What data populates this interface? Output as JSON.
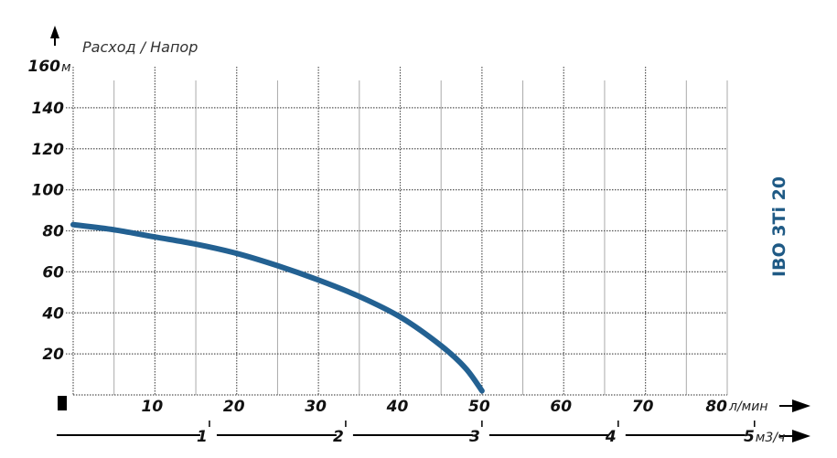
{
  "chart_data": {
    "type": "line",
    "title": "IBO 3Ti 20",
    "ylabel": "Расход / Напор",
    "y_unit": "м",
    "x_unit": "л/мин",
    "x2_unit": "м3/ч",
    "xlim": [
      0,
      80
    ],
    "ylim": [
      0,
      160
    ],
    "x_ticks": [
      10,
      20,
      30,
      40,
      50,
      60,
      70,
      80
    ],
    "y_ticks": [
      20,
      40,
      60,
      80,
      100,
      120,
      140,
      160
    ],
    "x2_ticks": [
      1,
      2,
      3,
      4,
      5
    ],
    "grid": true,
    "series": [
      {
        "x": [
          0,
          5,
          10,
          15,
          20,
          25,
          30,
          35,
          40,
          45,
          48,
          50
        ],
        "y": [
          83,
          80.5,
          77,
          73.5,
          69,
          63,
          56,
          48,
          38,
          24,
          13,
          2
        ]
      }
    ],
    "colors": {
      "curve": "#236192",
      "title": "#1f5a85",
      "grid": "#888888"
    }
  }
}
